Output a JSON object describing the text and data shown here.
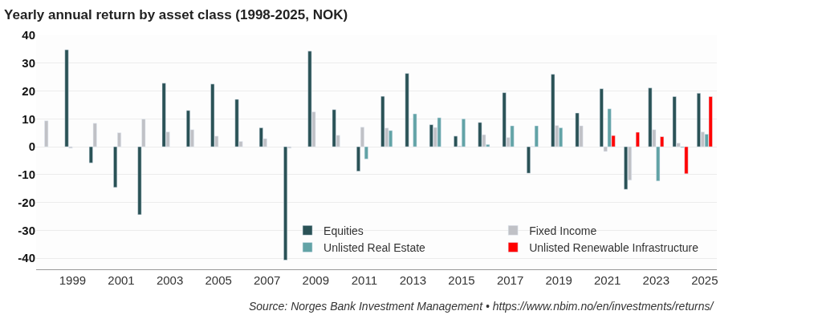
{
  "chart_data": {
    "type": "bar",
    "title": "Yearly annual return by asset class (1998-2025, NOK)",
    "annotations": [
      "Source: Norges Bank Investment Management • https://www.nbim.no/en/investments/returns/"
    ],
    "x": [
      1998,
      1999,
      2000,
      2001,
      2002,
      2003,
      2004,
      2005,
      2006,
      2007,
      2008,
      2009,
      2010,
      2011,
      2012,
      2013,
      2014,
      2015,
      2016,
      2017,
      2018,
      2019,
      2020,
      2021,
      2022,
      2023,
      2024,
      2025
    ],
    "series": [
      {
        "name": "Equities",
        "color": "#2a5256",
        "values": [
          null,
          34.8,
          -5.8,
          -14.6,
          -24.4,
          22.8,
          13.0,
          22.5,
          17.0,
          6.8,
          -40.7,
          34.3,
          13.3,
          -8.8,
          18.1,
          26.3,
          7.9,
          3.8,
          8.7,
          19.4,
          -9.5,
          26.0,
          12.1,
          20.8,
          -15.3,
          21.1,
          18.0,
          19.2
        ]
      },
      {
        "name": "Fixed Income",
        "color": "#c0c1c6",
        "values": [
          9.3,
          -0.5,
          8.4,
          5.0,
          9.9,
          5.3,
          6.1,
          3.8,
          1.9,
          2.9,
          -0.5,
          12.5,
          4.1,
          7.0,
          6.7,
          null,
          6.9,
          0.3,
          4.3,
          3.3,
          0.1,
          7.6,
          7.5,
          -1.7,
          -12.0,
          6.1,
          1.3,
          5.3
        ]
      },
      {
        "name": "Unlisted Real Estate",
        "color": "#62a3a6",
        "values": [
          null,
          null,
          null,
          null,
          null,
          null,
          null,
          null,
          null,
          null,
          null,
          null,
          null,
          -4.4,
          5.8,
          11.8,
          10.4,
          10.0,
          0.8,
          7.5,
          7.5,
          6.8,
          null,
          13.6,
          null,
          -12.3,
          -0.3,
          4.5
        ]
      },
      {
        "name": "Unlisted Renewable Infrastructure",
        "color": "#ff0000",
        "values": [
          null,
          null,
          null,
          null,
          null,
          null,
          null,
          null,
          null,
          null,
          null,
          null,
          null,
          null,
          null,
          null,
          null,
          null,
          null,
          null,
          null,
          null,
          null,
          4.0,
          5.2,
          3.6,
          -9.7,
          18.0
        ]
      }
    ],
    "xlim": [
      1997.5,
      2025.5
    ],
    "xticks": [
      1999,
      2001,
      2003,
      2005,
      2007,
      2009,
      2011,
      2013,
      2015,
      2017,
      2019,
      2021,
      2023,
      2025
    ],
    "ylim": [
      -44,
      40
    ],
    "yticks": [
      -40,
      -30,
      -20,
      -10,
      0,
      10,
      20,
      30,
      40
    ],
    "grid": "y",
    "legend": "bottom right"
  }
}
